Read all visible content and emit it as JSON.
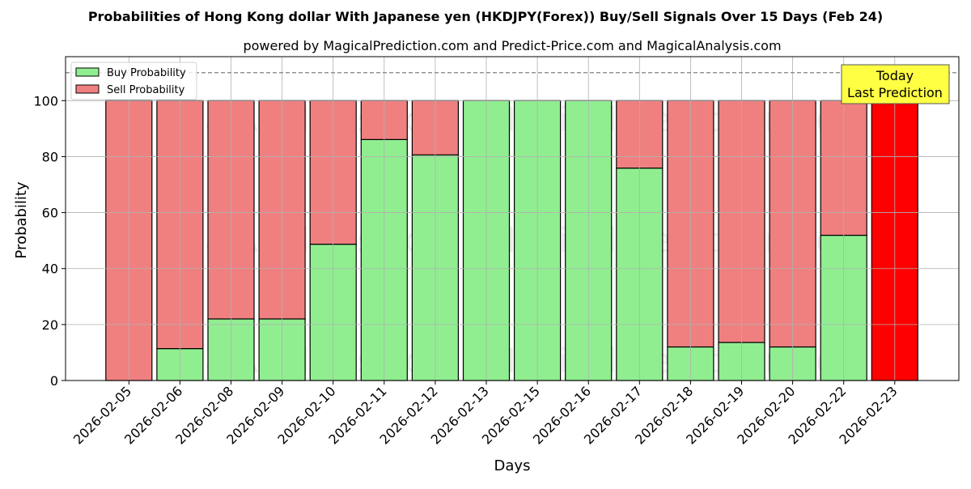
{
  "chart_data": {
    "type": "bar",
    "stacked": true,
    "title": "Probabilities of Hong Kong dollar With Japanese yen (HKDJPY(Forex)) Buy/Sell Signals Over 15 Days (Feb 24)",
    "subtitle": "powered by MagicalPrediction.com and Predict-Price.com and MagicalAnalysis.com",
    "xlabel": "Days",
    "ylabel": "Probability",
    "ylim": [
      0,
      115
    ],
    "yticks": [
      0,
      20,
      40,
      60,
      80,
      100
    ],
    "grid": true,
    "reference_line": {
      "y": 110,
      "style": "dashed",
      "color": "#808080"
    },
    "categories": [
      "2026-02-05",
      "2026-02-06",
      "2026-02-08",
      "2026-02-09",
      "2026-02-10",
      "2026-02-11",
      "2026-02-12",
      "2026-02-13",
      "2026-02-15",
      "2026-02-16",
      "2026-02-17",
      "2026-02-18",
      "2026-02-19",
      "2026-02-20",
      "2026-02-22",
      "2026-02-23"
    ],
    "series": [
      {
        "name": "Buy Probability",
        "color": "#90ee90",
        "values": [
          0,
          11.4,
          22.0,
          22.0,
          48.7,
          86.1,
          80.6,
          100,
          100,
          100,
          75.9,
          12.0,
          13.6,
          12.0,
          51.9,
          0
        ]
      },
      {
        "name": "Sell Probability",
        "color": "#f08080",
        "values": [
          100,
          88.6,
          78.0,
          78.0,
          51.3,
          13.9,
          19.4,
          0,
          0,
          0,
          24.1,
          88.0,
          86.4,
          88.0,
          48.1,
          100
        ]
      }
    ],
    "highlight": {
      "index": 15,
      "sell_color": "#ff0000"
    },
    "legend": {
      "position": "upper left",
      "entries": [
        "Buy Probability",
        "Sell Probability"
      ]
    },
    "annotation": {
      "text_lines": [
        "Today",
        "Last Prediction"
      ],
      "background": "#ffff44",
      "position": "top right"
    },
    "watermarks": [
      "MagicalAnalysis.com",
      "MagicalPrediction.com"
    ]
  }
}
